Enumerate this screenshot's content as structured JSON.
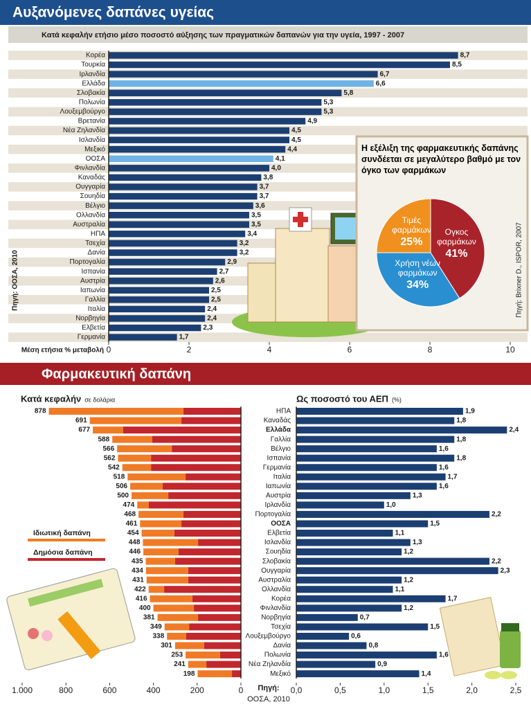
{
  "section2": {
    "title": "Φαρμακευτική δαπάνη"
  },
  "chart_data": [
    {
      "type": "bar",
      "title": "Αυξανόμενες δαπάνες υγείας",
      "subtitle": "Κατά κεφαλήν ετήσιο μέσο ποσοστό αύξησης των πραγματικών δαπανών για την υγεία, 1997 - 2007",
      "xlabel": "Μέση ετήσια % μεταβολή",
      "source": "Πηγή: ΟΟΣΑ, 2010",
      "categories": [
        "Κορέα",
        "Τουρκία",
        "Ιρλανδία",
        "Ελλάδα",
        "Σλοβακία",
        "Πολωνία",
        "Λουξεμβούργο",
        "Βρετανία",
        "Νέα Ζηλανδία",
        "Ισλανδία",
        "Μεξικό",
        "ΟΟΣΑ",
        "Φινλανδία",
        "Καναδάς",
        "Ουγγαρία",
        "Σουηδία",
        "Βέλγιο",
        "Ολλανδία",
        "Αυστραλία",
        "ΗΠΑ",
        "Τσεχία",
        "Δανία",
        "Πορτογαλία",
        "Ισπανία",
        "Αυστρία",
        "Ιαπωνία",
        "Γαλλία",
        "Ιταλία",
        "Νορβηγία",
        "Ελβετία",
        "Γερμανία"
      ],
      "values": [
        8.7,
        8.5,
        6.7,
        6.6,
        5.8,
        5.3,
        5.3,
        4.9,
        4.5,
        4.5,
        4.4,
        4.1,
        4.0,
        3.8,
        3.7,
        3.7,
        3.6,
        3.5,
        3.5,
        3.4,
        3.2,
        3.2,
        2.9,
        2.7,
        2.6,
        2.5,
        2.5,
        2.4,
        2.4,
        2.3,
        1.7
      ],
      "value_labels": [
        "8,7",
        "8,5",
        "6,7",
        "6,6",
        "5,8",
        "5,3",
        "5,3",
        "4,9",
        "4,5",
        "4,5",
        "4,4",
        "4,1",
        "4,0",
        "3,8",
        "3,7",
        "3,7",
        "3,6",
        "3,5",
        "3,5",
        "3,4",
        "3,2",
        "3,2",
        "2,9",
        "2,7",
        "2,6",
        "2,5",
        "2,5",
        "2,4",
        "2,4",
        "2,3",
        "1,7"
      ],
      "color": "#1c3f73",
      "colors": [
        "#1c3f73",
        "#1c3f73",
        "#1c3f73",
        "#6fb3e4",
        "#1c3f73",
        "#1c3f73",
        "#1c3f73",
        "#1c3f73",
        "#1c3f73",
        "#1c3f73",
        "#1c3f73",
        "#6fb3e4",
        "#1c3f73",
        "#1c3f73",
        "#1c3f73",
        "#1c3f73",
        "#1c3f73",
        "#1c3f73",
        "#1c3f73",
        "#1c3f73",
        "#1c3f73",
        "#1c3f73",
        "#1c3f73",
        "#1c3f73",
        "#1c3f73",
        "#1c3f73",
        "#1c3f73",
        "#1c3f73",
        "#1c3f73",
        "#1c3f73",
        "#1c3f73"
      ],
      "xlim": [
        0,
        10
      ],
      "xticks": [
        0,
        2,
        4,
        6,
        8,
        10
      ]
    },
    {
      "type": "pie",
      "title": "Η εξέλιξη της φαρμακευτικής δαπάνης συνδέεται σε μεγαλύτερο βαθμό με τον όγκο των φαρμάκων",
      "source": "Πηγή: Brixner D., ISPOR, 2007",
      "categories": [
        "Ογκος φαρμάκων",
        "Χρήση νέων φαρμάκων",
        "Τιμές φαρμάκων"
      ],
      "values": [
        41,
        34,
        25
      ],
      "value_labels": [
        "41%",
        "34%",
        "25%"
      ],
      "colors": [
        "#a8232a",
        "#2a8fd0",
        "#f0901e"
      ]
    },
    {
      "type": "stacked_bar",
      "title": "Κατά κεφαλήν",
      "unit_note": "σε δολάρια",
      "series": [
        {
          "name": "Ιδιωτική δαπάνη",
          "color": "#f07b27",
          "values": [
            615,
            419,
            139,
            183,
            250,
            151,
            131,
            265,
            148,
            168,
            53,
            205,
            189,
            150,
            252,
            161,
            134,
            193,
            190,
            71,
            194,
            185,
            185,
            112,
            88,
            133,
            158,
            83,
            157
          ]
        },
        {
          "name": "Δημόσια δαπάνη",
          "color": "#c1272d",
          "values": [
            263,
            272,
            538,
            405,
            316,
            411,
            411,
            253,
            358,
            332,
            421,
            263,
            272,
            304,
            196,
            285,
            301,
            241,
            241,
            351,
            222,
            215,
            196,
            237,
            250,
            168,
            95,
            158,
            41
          ]
        }
      ],
      "totals": [
        878,
        691,
        677,
        588,
        566,
        562,
        542,
        518,
        506,
        500,
        474,
        468,
        461,
        454,
        448,
        446,
        435,
        434,
        431,
        422,
        416,
        400,
        381,
        349,
        338,
        301,
        253,
        241,
        198
      ],
      "xlim": [
        0,
        1000
      ],
      "xticks": [
        {
          "value": 1000,
          "label": "1.000"
        },
        800,
        600,
        400,
        200,
        0
      ]
    },
    {
      "type": "bar",
      "title": "Ως ποσοστό του ΑΕΠ",
      "unit_note": "(%)",
      "source_label": "Πηγή:",
      "source": "ΟΟΣΑ, 2010",
      "categories": [
        "ΗΠΑ",
        "Καναδάς",
        "Ελλάδα",
        "Γαλλία",
        "Βέλγιο",
        "Ισπανία",
        "Γερμανία",
        "Ιταλία",
        "Ιαπωνία",
        "Αυστρία",
        "Ιρλανδία",
        "Πορτογαλία",
        "ΟΟΣΑ",
        "Ελβετία",
        "Ισλανδία",
        "Σουηδία",
        "Σλοβακία",
        "Ουγγαρία",
        "Αυστραλία",
        "Ολλανδία",
        "Κορέα",
        "Φινλανδία",
        "Νορβηγία",
        "Τσεχία",
        "Λουξεμβούργο",
        "Δανία",
        "Πολωνία",
        "Νέα Ζηλανδία",
        "Μεξικό"
      ],
      "values": [
        1.9,
        1.8,
        2.4,
        1.8,
        1.6,
        1.8,
        1.6,
        1.7,
        1.6,
        1.3,
        1.0,
        2.2,
        1.5,
        1.1,
        1.3,
        1.2,
        2.2,
        2.3,
        1.2,
        1.1,
        1.7,
        1.2,
        0.7,
        1.5,
        0.6,
        0.8,
        1.6,
        0.9,
        1.4
      ],
      "value_labels": [
        "1,9",
        "1,8",
        "2,4",
        "1,8",
        "1,6",
        "1,8",
        "1,6",
        "1,7",
        "1,6",
        "1,3",
        "1,0",
        "2,2",
        "1,5",
        "1,1",
        "1,3",
        "1,2",
        "2,2",
        "2,3",
        "1,2",
        "1,1",
        "1,7",
        "1,2",
        "0,7",
        "1,5",
        "0,6",
        "0,8",
        "1,6",
        "0,9",
        "1,4"
      ],
      "emphasis": [
        2,
        12
      ],
      "color": "#1c3f73",
      "xlim": [
        0,
        2.5
      ],
      "xticks": [
        {
          "value": 0,
          "label": "0,0"
        },
        {
          "value": 0.5,
          "label": "0,5"
        },
        {
          "value": 1,
          "label": "1,0"
        },
        {
          "value": 1.5,
          "label": "1,5"
        },
        {
          "value": 2,
          "label": "2,0"
        },
        {
          "value": 2.5,
          "label": "2,5"
        }
      ]
    }
  ]
}
